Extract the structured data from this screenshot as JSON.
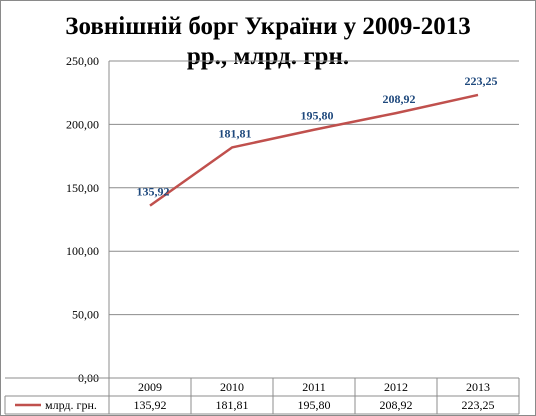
{
  "chart_data": {
    "type": "line",
    "title": "Зовнішній борг України у 2009-2013 рр., млрд. грн.",
    "title_lines": [
      "Зовнішній борг України у 2009-2013",
      "рр., млрд. грн."
    ],
    "categories": [
      "2009",
      "2010",
      "2011",
      "2012",
      "2013"
    ],
    "series": [
      {
        "name": "млрд. грн.",
        "values": [
          135.92,
          181.81,
          195.8,
          208.92,
          223.25
        ],
        "value_labels": [
          "135,92",
          "181,81",
          "195,80",
          "208,92",
          "223,25"
        ],
        "color": "#c0504d",
        "label_color": "#1f497d"
      }
    ],
    "ylim": [
      0,
      250
    ],
    "yticks": [
      "0,00",
      "50,00",
      "100,00",
      "150,00",
      "200,00",
      "250,00"
    ],
    "ytick_values": [
      0,
      50,
      100,
      150,
      200,
      250
    ],
    "grid": true,
    "legend": "data-table",
    "xlabel": "",
    "ylabel": ""
  },
  "colors": {
    "gridline": "#8c8c8c",
    "axis": "#8c8c8c",
    "series": "#c0504d",
    "labels": "#1f497d"
  }
}
